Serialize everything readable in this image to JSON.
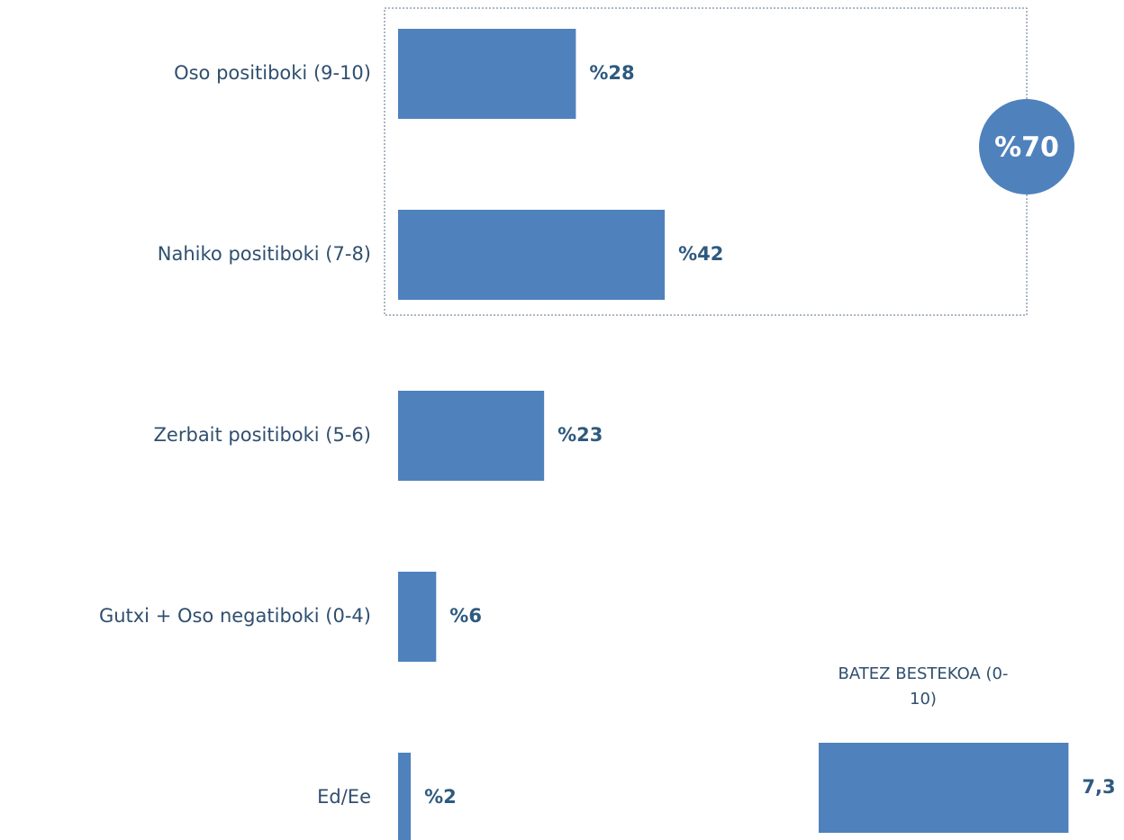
{
  "chart_data": [
    {
      "type": "bar",
      "orientation": "horizontal",
      "categories": [
        "Oso positiboki (9-10)",
        "Nahiko positiboki (7-8)",
        "Zerbait positiboki (5-6)",
        "Gutxi + Oso negatiboki (0-4)",
        "Ed/Ee"
      ],
      "values": [
        28,
        42,
        23,
        6,
        2
      ],
      "value_labels": [
        "%28",
        "%42",
        "%23",
        "%6",
        "%2"
      ],
      "color": "#4f81bd",
      "annotation": "%70"
    },
    {
      "type": "bar",
      "orientation": "horizontal",
      "title": "BATEZ BESTEKOA (0-10)",
      "values": [
        7.3
      ],
      "value_labels": [
        "7,3"
      ],
      "color": "#4f81bd"
    }
  ]
}
